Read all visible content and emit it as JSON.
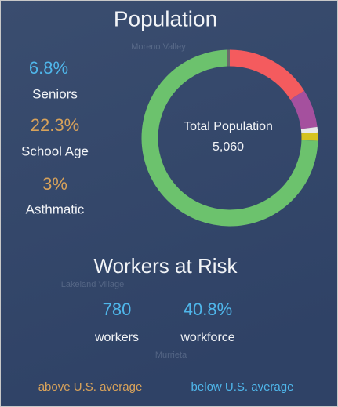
{
  "header": {
    "title": "Population"
  },
  "map_labels": [
    "Moreno Valley",
    "Lakeland Village",
    "Murrieta"
  ],
  "stats": [
    {
      "value": "6.8%",
      "label": "Seniors"
    },
    {
      "value": "22.3%",
      "label": "School Age"
    },
    {
      "value": "3%",
      "label": "Asthmatic"
    }
  ],
  "chart_data": {
    "type": "donut",
    "center_label": "Total Population",
    "center_value": "5,060",
    "values": [
      16,
      7,
      1,
      1.5,
      74,
      0.5
    ],
    "colors": [
      "#f45b5e",
      "#a5509e",
      "#e8e8e8",
      "#d6c31e",
      "#6cc26d",
      "#6a6a6a"
    ]
  },
  "workers": {
    "title": "Workers at Risk",
    "items": [
      {
        "value": "780",
        "label": "workers"
      },
      {
        "value": "40.8%",
        "label": "workforce"
      }
    ]
  },
  "legend": {
    "above": "above U.S. average",
    "below": "below U.S. average"
  }
}
